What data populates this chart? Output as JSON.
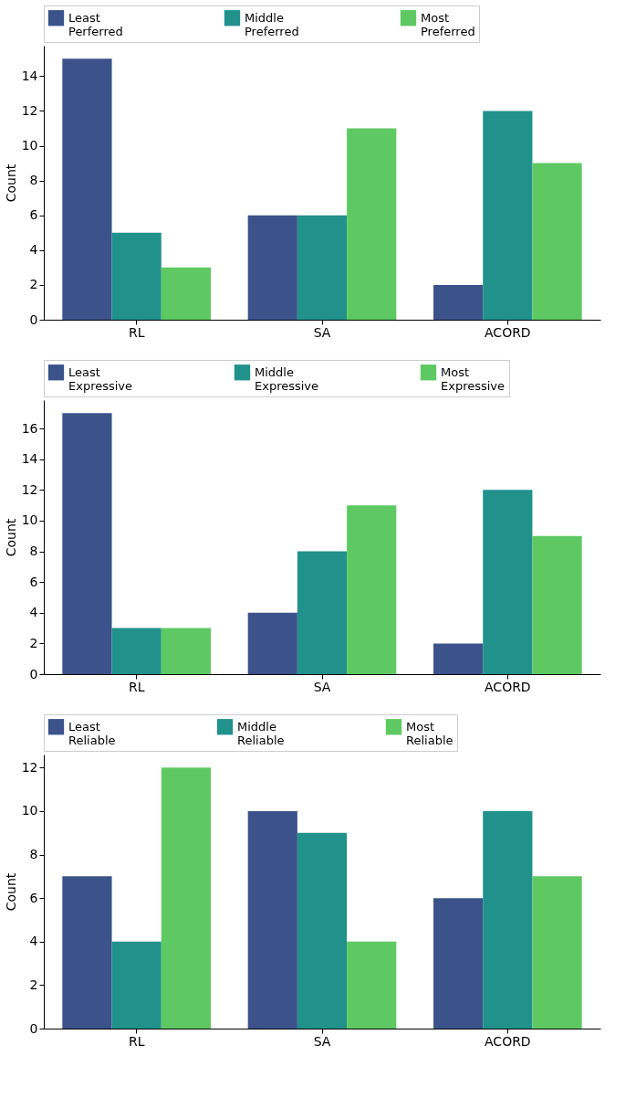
{
  "chart_data": [
    {
      "type": "bar",
      "ylabel": "Count",
      "categories": [
        "RL",
        "SA",
        "ACORD"
      ],
      "legend": "top",
      "ylim": [
        0,
        15.75
      ],
      "yticks": [
        0,
        2,
        4,
        6,
        8,
        10,
        12,
        14
      ],
      "series": [
        {
          "name": "Least\nPerferred",
          "color": "#3b528b",
          "values": [
            15,
            6,
            2
          ]
        },
        {
          "name": "Middle\nPreferred",
          "color": "#21918c",
          "values": [
            5,
            6,
            12
          ]
        },
        {
          "name": "Most\nPreferred",
          "color": "#5ec962",
          "values": [
            3,
            11,
            9
          ]
        }
      ]
    },
    {
      "type": "bar",
      "ylabel": "Count",
      "categories": [
        "RL",
        "SA",
        "ACORD"
      ],
      "legend": "top",
      "ylim": [
        0,
        17.85
      ],
      "yticks": [
        0,
        2,
        4,
        6,
        8,
        10,
        12,
        14,
        16
      ],
      "series": [
        {
          "name": "Least\nExpressive",
          "color": "#3b528b",
          "values": [
            17,
            4,
            2
          ]
        },
        {
          "name": "Middle\nExpressive",
          "color": "#21918c",
          "values": [
            3,
            8,
            12
          ]
        },
        {
          "name": "Most\nExpressive",
          "color": "#5ec962",
          "values": [
            3,
            11,
            9
          ]
        }
      ]
    },
    {
      "type": "bar",
      "ylabel": "Count",
      "categories": [
        "RL",
        "SA",
        "ACORD"
      ],
      "legend": "top",
      "ylim": [
        0,
        12.6
      ],
      "yticks": [
        0,
        2,
        4,
        6,
        8,
        10,
        12
      ],
      "series": [
        {
          "name": "Least\nReliable",
          "color": "#3b528b",
          "values": [
            7,
            10,
            6
          ]
        },
        {
          "name": "Middle\nReliable",
          "color": "#21918c",
          "values": [
            4,
            9,
            10
          ]
        },
        {
          "name": "Most\nReliable",
          "color": "#5ec962",
          "values": [
            12,
            4,
            7
          ]
        }
      ]
    }
  ]
}
